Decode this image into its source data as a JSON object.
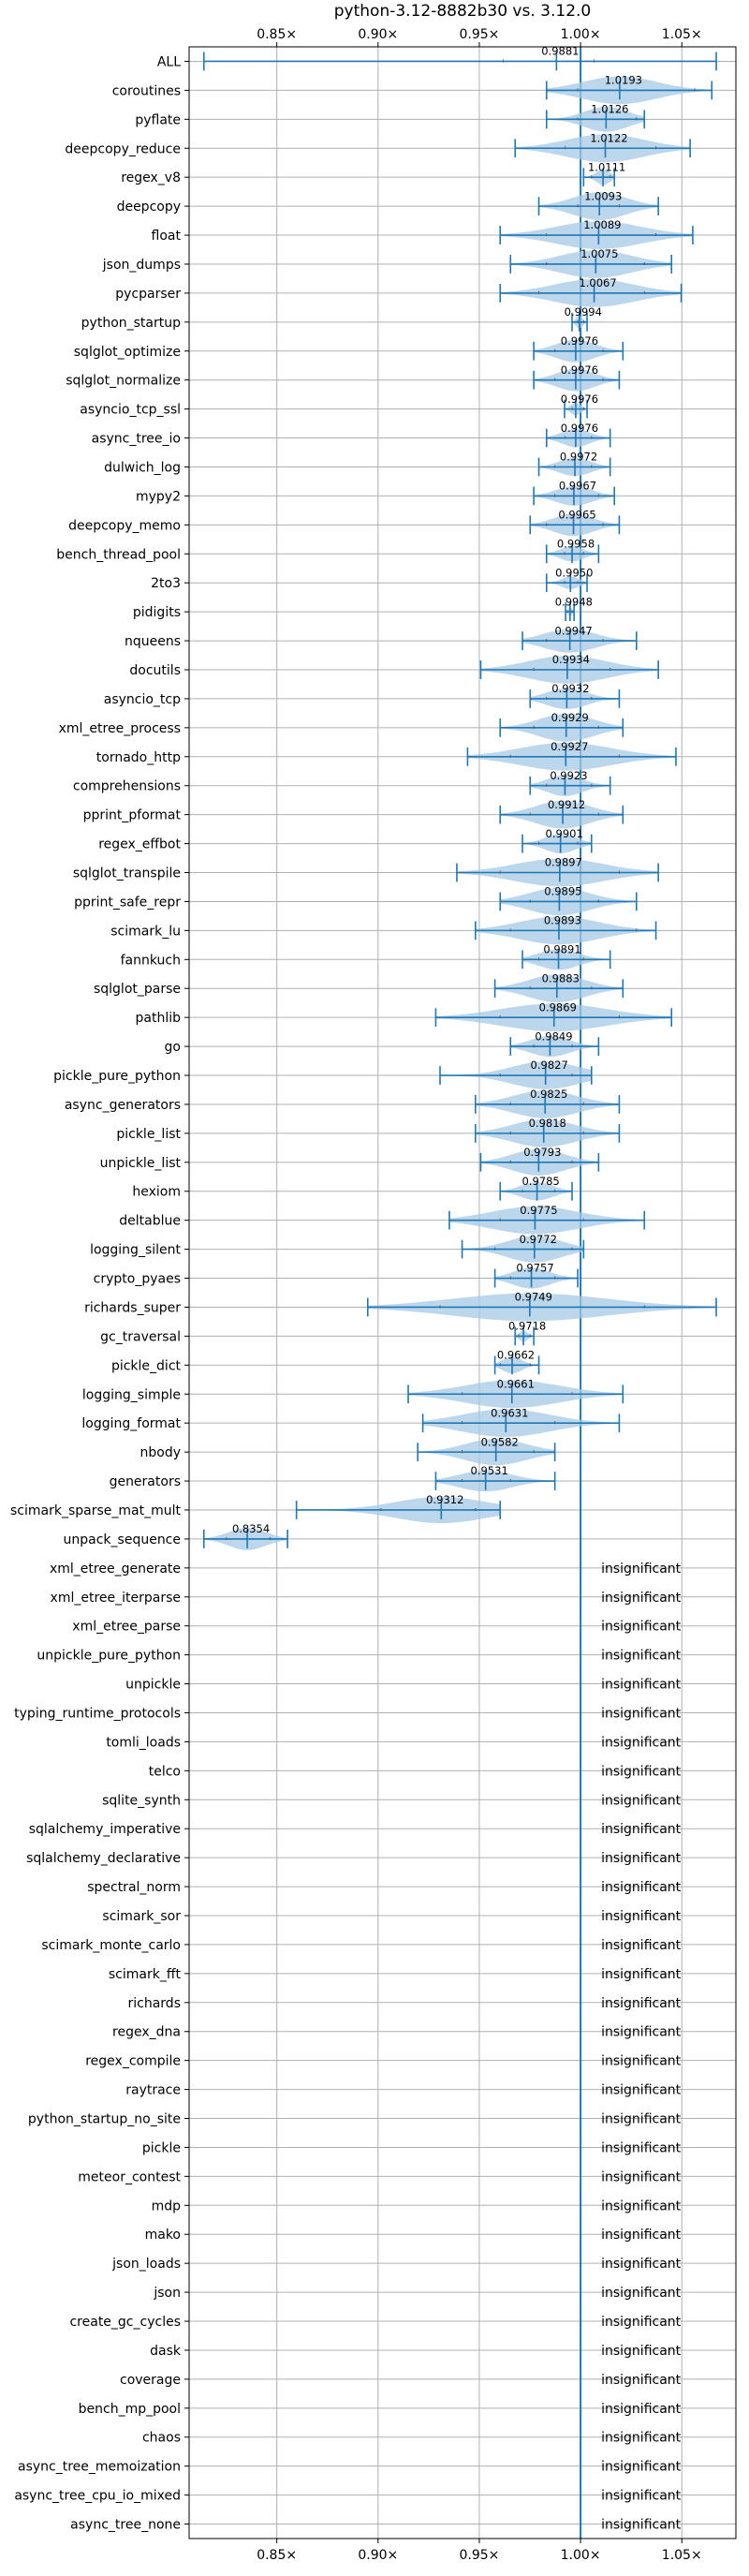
{
  "chart_data": {
    "type": "violin",
    "title": "python-3.12-8882b30 vs. 3.12.0",
    "orientation": "horizontal",
    "xlim": [
      0.8067,
      1.0767
    ],
    "x_ticks": [
      0.85,
      0.9,
      0.95,
      1.0,
      1.05
    ],
    "x_tick_labels": [
      "0.85×",
      "0.90×",
      "0.95×",
      "1.00×",
      "1.05×"
    ],
    "reference_x": 1.0,
    "grid": true,
    "colors": {
      "violin": "#a6c8e6",
      "line": "#1f77b4",
      "grid": "#b0b0b0"
    },
    "insignificant_text": "insignificant",
    "benchmarks": [
      {
        "name": "ALL",
        "mean": 0.9881,
        "min": 0.814,
        "max": 1.067,
        "p25": 0.9618,
        "p75": 1.0067,
        "spread": 0.0
      },
      {
        "name": "coroutines",
        "mean": 1.0193,
        "min": 0.9832,
        "max": 1.0648,
        "p25": 0.9986,
        "p75": 1.0564,
        "spread": 0.017
      },
      {
        "name": "pyflate",
        "mean": 1.0126,
        "min": 0.9832,
        "max": 1.0315,
        "p25": 0.9986,
        "p75": 1.0276,
        "spread": 0.013
      },
      {
        "name": "deepcopy_reduce",
        "mean": 1.0122,
        "min": 0.9677,
        "max": 1.0541,
        "p25": 0.9924,
        "p75": 1.0372,
        "spread": 0.022
      },
      {
        "name": "regex_v8",
        "mean": 1.0111,
        "min": 1.0015,
        "max": 1.0167,
        "p25": 1.0054,
        "p75": 1.0146,
        "spread": 0.006
      },
      {
        "name": "deepcopy",
        "mean": 1.0093,
        "min": 0.9794,
        "max": 1.0384,
        "p25": 0.9986,
        "p75": 1.0191,
        "spread": 0.017
      },
      {
        "name": "float",
        "mean": 1.0089,
        "min": 0.9603,
        "max": 1.0554,
        "p25": 0.9832,
        "p75": 1.0372,
        "spread": 0.024
      },
      {
        "name": "json_dumps",
        "mean": 1.0075,
        "min": 0.9654,
        "max": 1.0449,
        "p25": 0.9832,
        "p75": 1.0315,
        "spread": 0.02
      },
      {
        "name": "pycparser",
        "mean": 1.0067,
        "min": 0.9603,
        "max": 1.0497,
        "p25": 0.9794,
        "p75": 1.0315,
        "spread": 0.024
      },
      {
        "name": "python_startup",
        "mean": 0.9994,
        "min": 0.9958,
        "max": 1.0032,
        "p25": 0.9986,
        "p75": 1.0015,
        "spread": 0.004
      },
      {
        "name": "sqlglot_optimize",
        "mean": 0.9976,
        "min": 0.9769,
        "max": 1.0209,
        "p25": 0.9873,
        "p75": 1.0111,
        "spread": 0.011
      },
      {
        "name": "sqlglot_normalize",
        "mean": 0.9976,
        "min": 0.9769,
        "max": 1.0191,
        "p25": 0.9873,
        "p75": 1.0111,
        "spread": 0.011
      },
      {
        "name": "asyncio_tcp_ssl",
        "mean": 0.9976,
        "min": 0.9921,
        "max": 1.0032,
        "p25": 0.9958,
        "p75": 1.0015,
        "spread": 0.004
      },
      {
        "name": "async_tree_io",
        "mean": 0.9976,
        "min": 0.9832,
        "max": 1.0146,
        "p25": 0.9924,
        "p75": 1.0054,
        "spread": 0.008
      },
      {
        "name": "dulwich_log",
        "mean": 0.9972,
        "min": 0.9794,
        "max": 1.0146,
        "p25": 0.9873,
        "p75": 1.0054,
        "spread": 0.008
      },
      {
        "name": "mypy2",
        "mean": 0.9967,
        "min": 0.9769,
        "max": 1.0167,
        "p25": 0.9873,
        "p75": 1.0089,
        "spread": 0.009
      },
      {
        "name": "deepcopy_memo",
        "mean": 0.9965,
        "min": 0.9751,
        "max": 1.0191,
        "p25": 0.9832,
        "p75": 1.0111,
        "spread": 0.011
      },
      {
        "name": "bench_thread_pool",
        "mean": 0.9958,
        "min": 0.9832,
        "max": 1.0089,
        "p25": 0.9921,
        "p75": 1.0015,
        "spread": 0.006
      },
      {
        "name": "2to3",
        "mean": 0.995,
        "min": 0.9832,
        "max": 1.0032,
        "p25": 0.9921,
        "p75": 0.9986,
        "spread": 0.004
      },
      {
        "name": "pidigits",
        "mean": 0.9948,
        "min": 0.9926,
        "max": 0.9968,
        "p25": 0.9935,
        "p75": 0.9958,
        "spread": 0.0015
      },
      {
        "name": "nqueens",
        "mean": 0.9947,
        "min": 0.9713,
        "max": 1.0276,
        "p25": 0.9832,
        "p75": 1.0111,
        "spread": 0.012
      },
      {
        "name": "docutils",
        "mean": 0.9934,
        "min": 0.9507,
        "max": 1.0384,
        "p25": 0.9769,
        "p75": 1.0146,
        "spread": 0.022
      },
      {
        "name": "asyncio_tcp",
        "mean": 0.9932,
        "min": 0.9751,
        "max": 1.0191,
        "p25": 0.9832,
        "p75": 1.0054,
        "spread": 0.01
      },
      {
        "name": "xml_etree_process",
        "mean": 0.9929,
        "min": 0.9603,
        "max": 1.0209,
        "p25": 0.9769,
        "p75": 1.0089,
        "spread": 0.016
      },
      {
        "name": "tornado_http",
        "mean": 0.9927,
        "min": 0.9442,
        "max": 1.0471,
        "p25": 0.9654,
        "p75": 1.0191,
        "spread": 0.026
      },
      {
        "name": "comprehensions",
        "mean": 0.9923,
        "min": 0.9751,
        "max": 1.0146,
        "p25": 0.9832,
        "p75": 1.0054,
        "spread": 0.01
      },
      {
        "name": "pprint_pformat",
        "mean": 0.9912,
        "min": 0.9603,
        "max": 1.0209,
        "p25": 0.9751,
        "p75": 1.0089,
        "spread": 0.015
      },
      {
        "name": "regex_effbot",
        "mean": 0.9901,
        "min": 0.9713,
        "max": 1.0054,
        "p25": 0.9794,
        "p75": 0.9986,
        "spread": 0.009
      },
      {
        "name": "sqlglot_transpile",
        "mean": 0.9897,
        "min": 0.9389,
        "max": 1.0384,
        "p25": 0.9603,
        "p75": 1.0191,
        "spread": 0.025
      },
      {
        "name": "pprint_safe_repr",
        "mean": 0.9895,
        "min": 0.9603,
        "max": 1.0276,
        "p25": 0.9751,
        "p75": 1.0089,
        "spread": 0.016
      },
      {
        "name": "scimark_lu",
        "mean": 0.9893,
        "min": 0.9481,
        "max": 1.0372,
        "p25": 0.9654,
        "p75": 1.0276,
        "spread": 0.024
      },
      {
        "name": "fannkuch",
        "mean": 0.9891,
        "min": 0.9713,
        "max": 1.0146,
        "p25": 0.9794,
        "p75": 1.0015,
        "spread": 0.01
      },
      {
        "name": "sqlglot_parse",
        "mean": 0.9883,
        "min": 0.9577,
        "max": 1.0209,
        "p25": 0.9751,
        "p75": 1.0054,
        "spread": 0.015
      },
      {
        "name": "pathlib",
        "mean": 0.9869,
        "min": 0.9285,
        "max": 1.0449,
        "p25": 0.9603,
        "p75": 1.0191,
        "spread": 0.028
      },
      {
        "name": "go",
        "mean": 0.9849,
        "min": 0.9654,
        "max": 1.0089,
        "p25": 0.9769,
        "p75": 0.9958,
        "spread": 0.01
      },
      {
        "name": "pickle_pure_python",
        "mean": 0.9827,
        "min": 0.9306,
        "max": 1.0054,
        "p25": 0.9603,
        "p75": 0.9958,
        "spread": 0.016
      },
      {
        "name": "async_generators",
        "mean": 0.9825,
        "min": 0.9481,
        "max": 1.0191,
        "p25": 0.9654,
        "p75": 1.0015,
        "spread": 0.016
      },
      {
        "name": "pickle_list",
        "mean": 0.9818,
        "min": 0.9481,
        "max": 1.0191,
        "p25": 0.9654,
        "p75": 1.0015,
        "spread": 0.016
      },
      {
        "name": "unpickle_list",
        "mean": 0.9793,
        "min": 0.9507,
        "max": 1.0089,
        "p25": 0.9654,
        "p75": 0.9958,
        "spread": 0.014
      },
      {
        "name": "hexiom",
        "mean": 0.9785,
        "min": 0.9603,
        "max": 0.9958,
        "p25": 0.9713,
        "p75": 0.9873,
        "spread": 0.008
      },
      {
        "name": "deltablue",
        "mean": 0.9775,
        "min": 0.9352,
        "max": 1.0315,
        "p25": 0.9603,
        "p75": 1.0015,
        "spread": 0.02
      },
      {
        "name": "logging_silent",
        "mean": 0.9772,
        "min": 0.9415,
        "max": 1.0015,
        "p25": 0.9577,
        "p75": 0.9958,
        "spread": 0.014
      },
      {
        "name": "crypto_pyaes",
        "mean": 0.9757,
        "min": 0.9577,
        "max": 0.9986,
        "p25": 0.9654,
        "p75": 0.9873,
        "spread": 0.01
      },
      {
        "name": "richards_super",
        "mean": 0.9749,
        "min": 0.8949,
        "max": 1.067,
        "p25": 0.9306,
        "p75": 1.0315,
        "spread": 0.03
      },
      {
        "name": "gc_traversal",
        "mean": 0.9718,
        "min": 0.9677,
        "max": 0.9769,
        "p25": 0.9695,
        "p75": 0.9751,
        "spread": 0.003
      },
      {
        "name": "pickle_dict",
        "mean": 0.9662,
        "min": 0.9577,
        "max": 0.9794,
        "p25": 0.9603,
        "p75": 0.9751,
        "spread": 0.007
      },
      {
        "name": "logging_simple",
        "mean": 0.9661,
        "min": 0.9149,
        "max": 1.0209,
        "p25": 0.9415,
        "p75": 0.9958,
        "spread": 0.02
      },
      {
        "name": "logging_format",
        "mean": 0.9631,
        "min": 0.9221,
        "max": 1.0191,
        "p25": 0.9415,
        "p75": 0.9873,
        "spread": 0.018
      },
      {
        "name": "nbody",
        "mean": 0.9582,
        "min": 0.9196,
        "max": 0.9873,
        "p25": 0.9415,
        "p75": 0.9769,
        "spread": 0.014
      },
      {
        "name": "generators",
        "mean": 0.9531,
        "min": 0.9285,
        "max": 0.9873,
        "p25": 0.9415,
        "p75": 0.9654,
        "spread": 0.01
      },
      {
        "name": "scimark_sparse_mat_mult",
        "mean": 0.9312,
        "min": 0.8597,
        "max": 0.9603,
        "p25": 0.9014,
        "p75": 0.9481,
        "spread": 0.014
      },
      {
        "name": "unpack_sequence",
        "mean": 0.8354,
        "min": 0.814,
        "max": 0.8553,
        "p25": 0.8251,
        "p75": 0.8466,
        "spread": 0.011
      },
      {
        "name": "xml_etree_generate",
        "insignificant": true
      },
      {
        "name": "xml_etree_iterparse",
        "insignificant": true
      },
      {
        "name": "xml_etree_parse",
        "insignificant": true
      },
      {
        "name": "unpickle_pure_python",
        "insignificant": true
      },
      {
        "name": "unpickle",
        "insignificant": true
      },
      {
        "name": "typing_runtime_protocols",
        "insignificant": true
      },
      {
        "name": "tomli_loads",
        "insignificant": true
      },
      {
        "name": "telco",
        "insignificant": true
      },
      {
        "name": "sqlite_synth",
        "insignificant": true
      },
      {
        "name": "sqlalchemy_imperative",
        "insignificant": true
      },
      {
        "name": "sqlalchemy_declarative",
        "insignificant": true
      },
      {
        "name": "spectral_norm",
        "insignificant": true
      },
      {
        "name": "scimark_sor",
        "insignificant": true
      },
      {
        "name": "scimark_monte_carlo",
        "insignificant": true
      },
      {
        "name": "scimark_fft",
        "insignificant": true
      },
      {
        "name": "richards",
        "insignificant": true
      },
      {
        "name": "regex_dna",
        "insignificant": true
      },
      {
        "name": "regex_compile",
        "insignificant": true
      },
      {
        "name": "raytrace",
        "insignificant": true
      },
      {
        "name": "python_startup_no_site",
        "insignificant": true
      },
      {
        "name": "pickle",
        "insignificant": true
      },
      {
        "name": "meteor_contest",
        "insignificant": true
      },
      {
        "name": "mdp",
        "insignificant": true
      },
      {
        "name": "mako",
        "insignificant": true
      },
      {
        "name": "json_loads",
        "insignificant": true
      },
      {
        "name": "json",
        "insignificant": true
      },
      {
        "name": "create_gc_cycles",
        "insignificant": true
      },
      {
        "name": "dask",
        "insignificant": true
      },
      {
        "name": "coverage",
        "insignificant": true
      },
      {
        "name": "bench_mp_pool",
        "insignificant": true
      },
      {
        "name": "chaos",
        "insignificant": true
      },
      {
        "name": "async_tree_memoization",
        "insignificant": true
      },
      {
        "name": "async_tree_cpu_io_mixed",
        "insignificant": true
      },
      {
        "name": "async_tree_none",
        "insignificant": true
      }
    ]
  }
}
